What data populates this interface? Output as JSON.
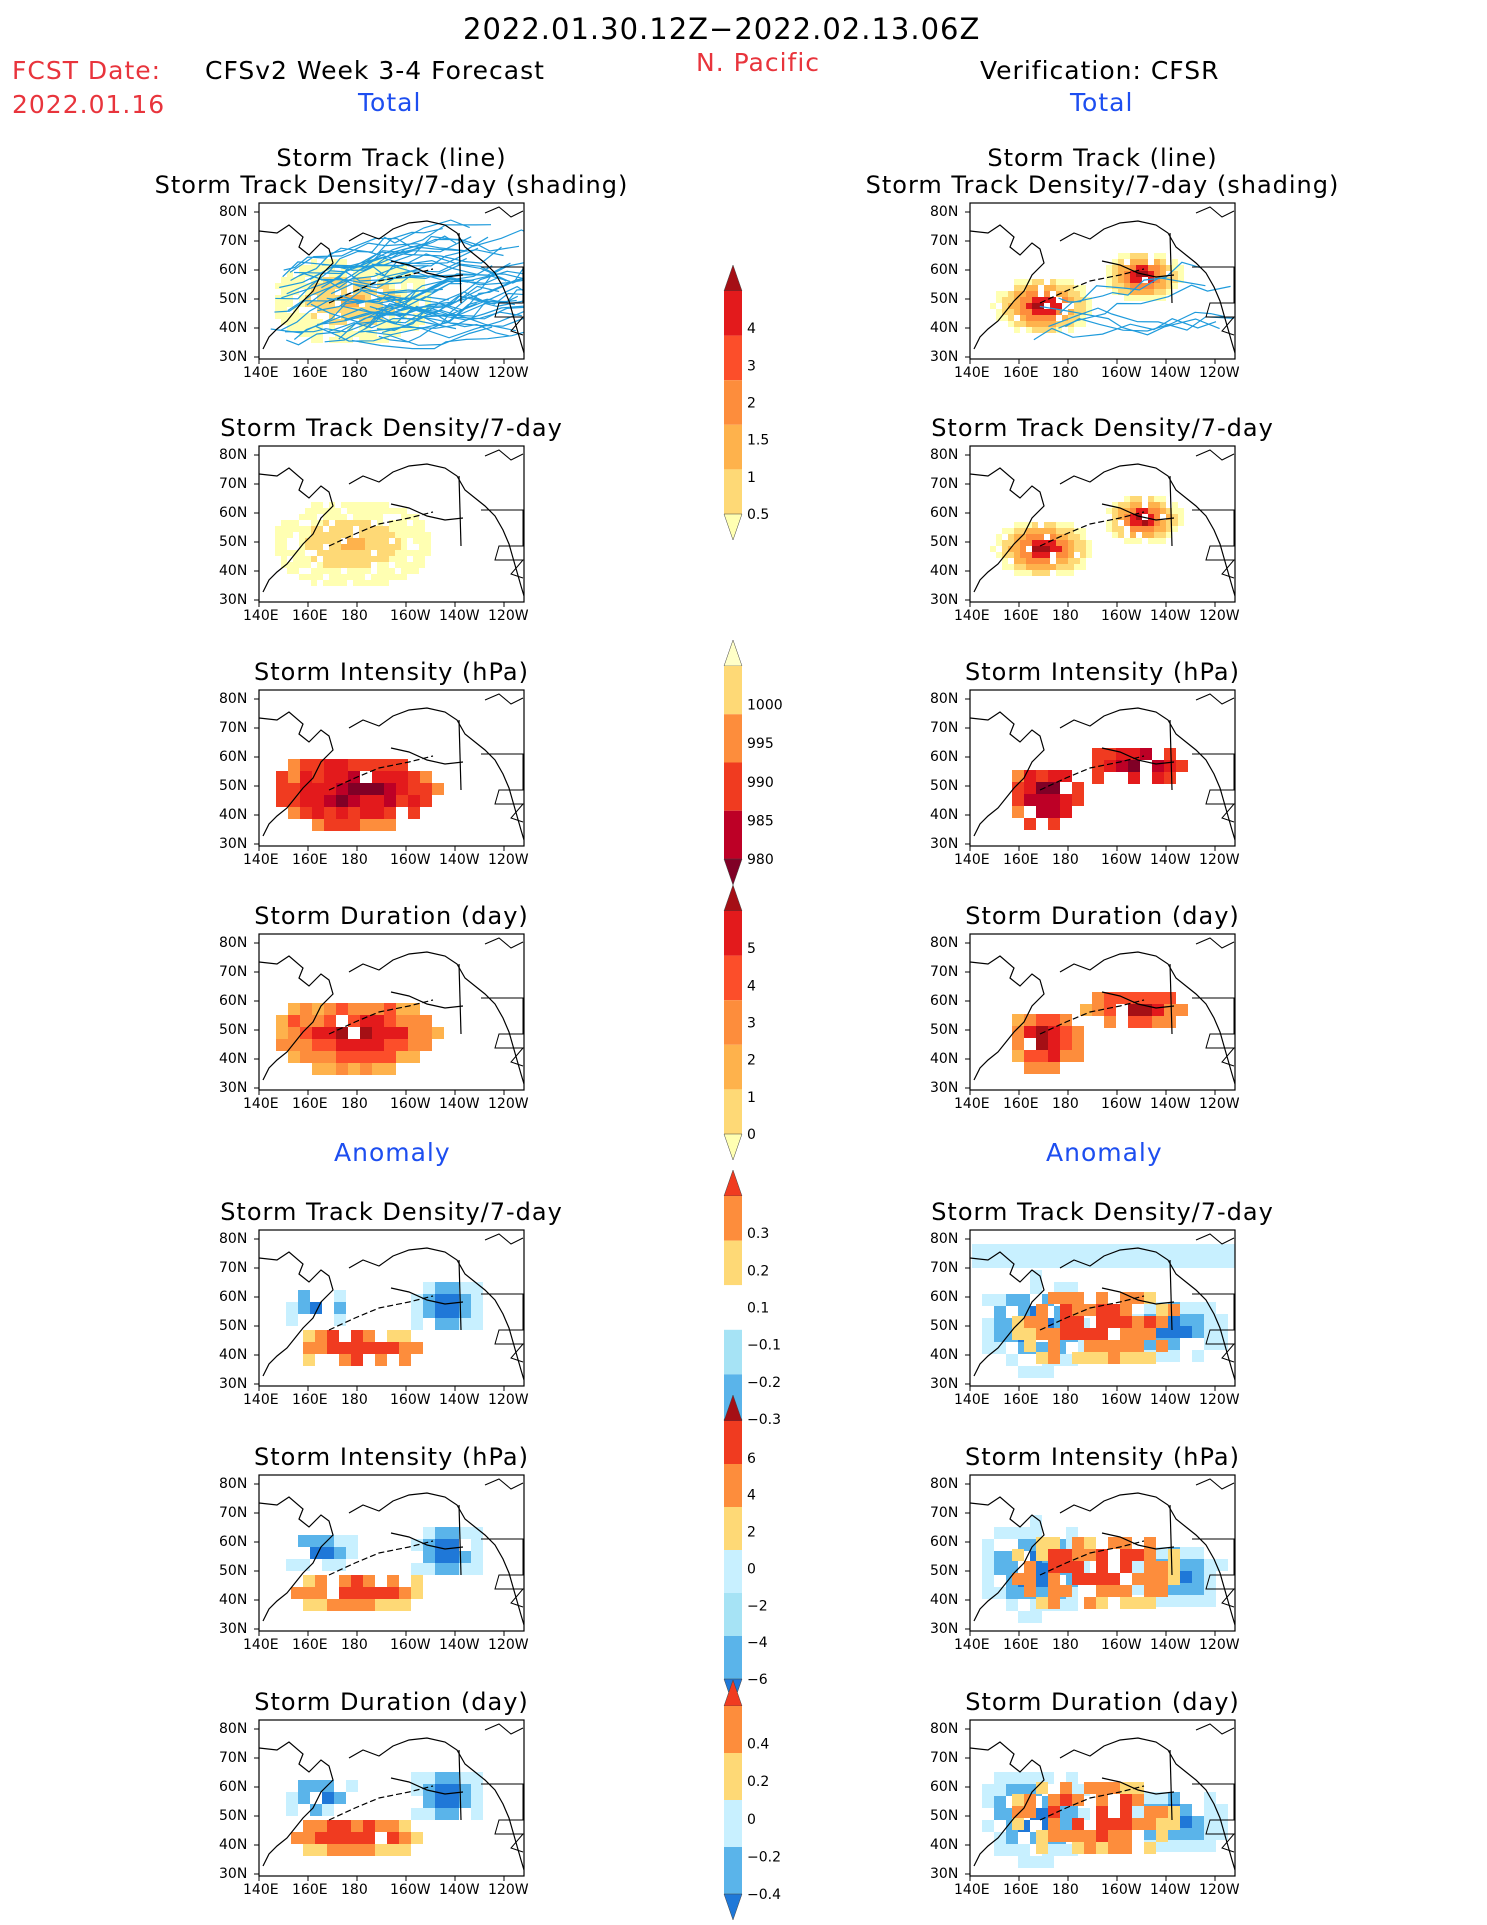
{
  "header": {
    "title": "2022.01.30.12Z−2022.02.13.06Z",
    "fcst_label": "FCST Date:",
    "fcst_date": "2022.01.16",
    "forecast_name": "CFSv2 Week 3-4 Forecast",
    "region": "N. Pacific",
    "verification": "Verification: CFSR",
    "total_left": "Total",
    "total_right": "Total",
    "anomaly_left": "Anomaly",
    "anomaly_right": "Anomaly"
  },
  "axes": {
    "lat_labels": [
      "80N",
      "70N",
      "60N",
      "50N",
      "40N",
      "30N"
    ],
    "lon_labels": [
      "140E",
      "160E",
      "180",
      "160W",
      "140W",
      "120W"
    ]
  },
  "panels": [
    {
      "id": "r1",
      "title": [
        "Storm Track (line)",
        "Storm Track Density/7-day (shading)"
      ]
    },
    {
      "id": "r2",
      "title": [
        "Storm Track Density/7-day"
      ]
    },
    {
      "id": "r3",
      "title": [
        "Storm Intensity (hPa)"
      ]
    },
    {
      "id": "r4",
      "title": [
        "Storm Duration (day)"
      ]
    },
    {
      "id": "r5",
      "title": [
        "Storm Track Density/7-day"
      ]
    },
    {
      "id": "r6",
      "title": [
        "Storm Intensity (hPa)"
      ]
    },
    {
      "id": "r7",
      "title": [
        "Storm Duration (day)"
      ]
    }
  ],
  "colorbars": [
    {
      "id": "cb-density",
      "labels": [
        "4",
        "3",
        "2",
        "1.5",
        "1",
        "0.5"
      ],
      "colors": [
        "#a50f15",
        "#e31a1c",
        "#fc4e2a",
        "#fd8d3c",
        "#feb24c",
        "#fed976",
        "#ffffb2"
      ]
    },
    {
      "id": "cb-intensity",
      "labels": [
        "1000",
        "995",
        "990",
        "985",
        "980"
      ],
      "colors": [
        "#ffffc8",
        "#fed976",
        "#fd8d3c",
        "#f03b20",
        "#bd0026",
        "#800026"
      ]
    },
    {
      "id": "cb-duration",
      "labels": [
        "5",
        "4",
        "3",
        "2",
        "1",
        "0"
      ],
      "colors": [
        "#a50f15",
        "#e31a1c",
        "#fc4e2a",
        "#fd8d3c",
        "#feb24c",
        "#fed976",
        "#ffffb2"
      ]
    },
    {
      "id": "cb-anom-density",
      "labels": [
        "0.3",
        "0.2",
        "0.1",
        "−0.1",
        "−0.2",
        "−0.3"
      ],
      "colors": [
        "#f03b20",
        "#fd8d3c",
        "#fed976",
        "#ffffff",
        "#a6e3f5",
        "#5ab4ea",
        "#1f78d8"
      ]
    },
    {
      "id": "cb-anom-intensity",
      "labels": [
        "6",
        "4",
        "2",
        "0",
        "−2",
        "−4",
        "−6"
      ],
      "colors": [
        "#a50f15",
        "#f03b20",
        "#fd8d3c",
        "#fed976",
        "#c8f0ff",
        "#a6e3f5",
        "#5ab4ea",
        "#1f78d8"
      ]
    },
    {
      "id": "cb-anom-duration",
      "labels": [
        "0.4",
        "0.2",
        "0",
        "−0.2",
        "−0.4"
      ],
      "colors": [
        "#f03b20",
        "#fd8d3c",
        "#fed976",
        "#c8f0ff",
        "#5ab4ea",
        "#1f78d8"
      ]
    }
  ]
}
